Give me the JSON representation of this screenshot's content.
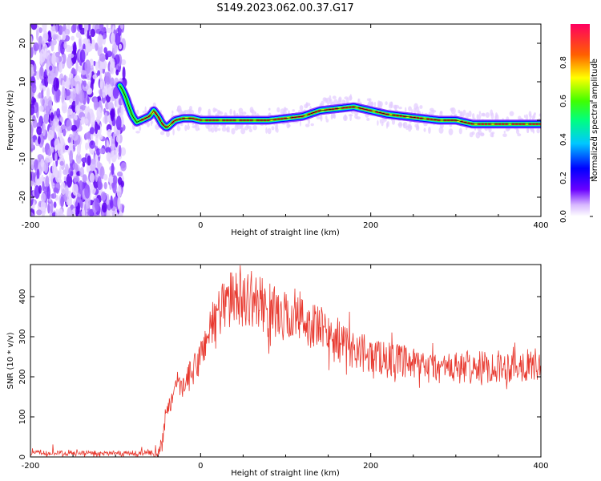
{
  "title": "S149.2023.062.00.37.G17",
  "chart_data": [
    {
      "type": "heatmap",
      "xlabel": "Height of straight line (km)",
      "ylabel": "Frequency (Hz)",
      "xlim": [
        -200,
        400
      ],
      "ylim": [
        -25,
        25
      ],
      "xticks": [
        -200,
        0,
        200,
        400
      ],
      "yticks": [
        -20,
        -10,
        0,
        10,
        20
      ],
      "ridge": {
        "x": [
          -95,
          -92,
          -88,
          -85,
          -80,
          -75,
          -70,
          -65,
          -60,
          -55,
          -50,
          -45,
          -40,
          -35,
          -30,
          -20,
          -10,
          0,
          20,
          40,
          60,
          80,
          100,
          120,
          140,
          160,
          180,
          200,
          220,
          240,
          260,
          280,
          300,
          320,
          340,
          360,
          380,
          400
        ],
        "freq_hz": [
          9,
          8,
          6,
          4,
          1,
          -0.5,
          0,
          0.5,
          1,
          2.5,
          1,
          -1,
          -2,
          -1,
          0,
          0.5,
          0.5,
          0,
          0,
          0,
          0,
          0,
          0.5,
          1,
          2.5,
          3,
          3.5,
          2.5,
          1.5,
          1,
          0.5,
          0,
          0,
          -1,
          -1,
          -1,
          -1,
          -1
        ]
      },
      "noise_region_x": [
        -200,
        -90
      ],
      "colorbar": {
        "label": "Normalized spectral amplitude",
        "ticks": [
          "0.0",
          "0.2",
          "0.4",
          "0.6",
          "0.8"
        ],
        "range": [
          0,
          1
        ]
      }
    },
    {
      "type": "line",
      "xlabel": "Height of straight line (km)",
      "ylabel": "SNR (10 * v/v)",
      "xlim": [
        -200,
        400
      ],
      "ylim": [
        0,
        480
      ],
      "xticks": [
        -200,
        0,
        200,
        400
      ],
      "yticks": [
        0,
        100,
        200,
        300,
        400
      ],
      "series": [
        {
          "color": "#e8392f",
          "envelope_x": [
            -200,
            -150,
            -100,
            -60,
            -50,
            -45,
            -40,
            -30,
            -20,
            -10,
            0,
            10,
            20,
            30,
            40,
            60,
            80,
            100,
            120,
            140,
            160,
            180,
            200,
            230,
            260,
            300,
            340,
            370,
            400
          ],
          "envelope_y": [
            10,
            10,
            10,
            10,
            15,
            40,
            110,
            160,
            180,
            210,
            250,
            320,
            360,
            390,
            395,
            395,
            370,
            350,
            340,
            320,
            290,
            270,
            255,
            240,
            225,
            220,
            225,
            228,
            230
          ]
        }
      ]
    }
  ]
}
